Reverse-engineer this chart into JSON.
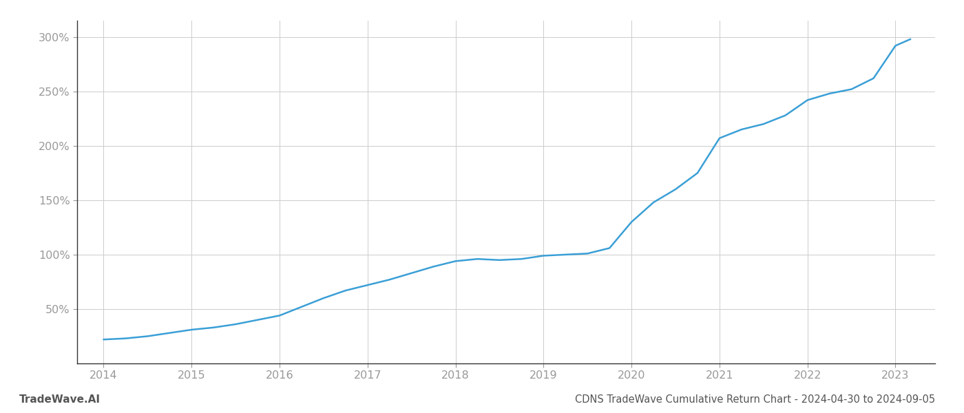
{
  "x_years": [
    2014.0,
    2014.25,
    2014.5,
    2014.75,
    2015.0,
    2015.25,
    2015.5,
    2015.75,
    2016.0,
    2016.25,
    2016.5,
    2016.75,
    2017.0,
    2017.25,
    2017.5,
    2017.75,
    2018.0,
    2018.25,
    2018.5,
    2018.75,
    2019.0,
    2019.25,
    2019.5,
    2019.75,
    2020.0,
    2020.25,
    2020.5,
    2020.75,
    2021.0,
    2021.25,
    2021.5,
    2021.75,
    2022.0,
    2022.25,
    2022.5,
    2022.75,
    2023.0,
    2023.17
  ],
  "y_values": [
    22,
    23,
    25,
    28,
    31,
    33,
    36,
    40,
    44,
    52,
    60,
    67,
    72,
    77,
    83,
    89,
    94,
    96,
    95,
    96,
    99,
    100,
    101,
    106,
    130,
    148,
    160,
    175,
    207,
    215,
    220,
    228,
    242,
    248,
    252,
    262,
    292,
    298
  ],
  "line_color": "#3a9fd6",
  "line_width": 1.8,
  "background_color": "#ffffff",
  "grid_color": "#cccccc",
  "title": "CDNS TradeWave Cumulative Return Chart - 2024-04-30 to 2024-09-05",
  "title_fontsize": 10.5,
  "title_color": "#555555",
  "watermark_text": "TradeWave.AI",
  "watermark_fontsize": 11,
  "watermark_color": "#555555",
  "watermark_bold": true,
  "ytick_labels": [
    "50%",
    "100%",
    "150%",
    "200%",
    "250%",
    "300%"
  ],
  "ytick_values": [
    50,
    100,
    150,
    200,
    250,
    300
  ],
  "xtick_labels": [
    "2014",
    "2015",
    "2016",
    "2017",
    "2018",
    "2019",
    "2020",
    "2021",
    "2022",
    "2023"
  ],
  "xtick_values": [
    2014,
    2015,
    2016,
    2017,
    2018,
    2019,
    2020,
    2021,
    2022,
    2023
  ],
  "xlim": [
    2013.7,
    2023.45
  ],
  "ylim": [
    0,
    315
  ],
  "tick_color": "#999999",
  "tick_fontsize": 11.5,
  "left_spine_color": "#333333",
  "bottom_spine_color": "#333333"
}
